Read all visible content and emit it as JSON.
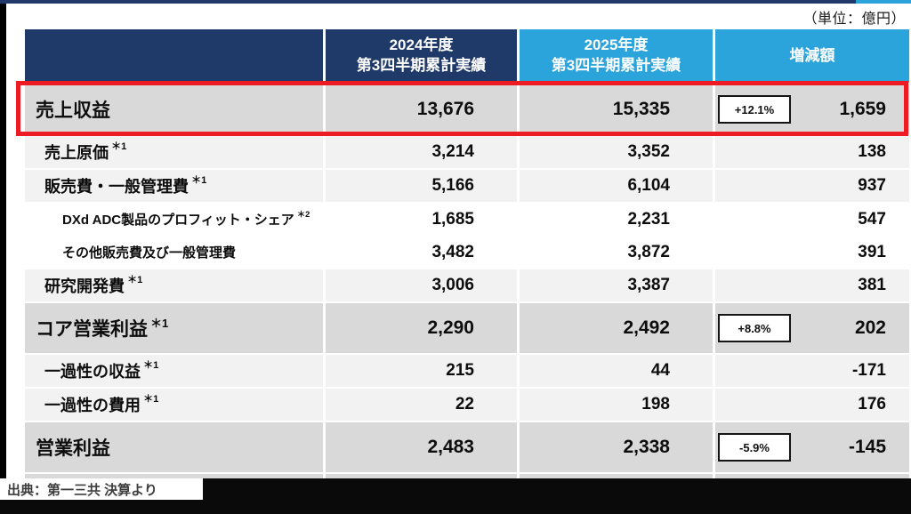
{
  "page": {
    "unit_label": "（単位：億円）",
    "source_label": "出典：第一三共 決算より"
  },
  "colors": {
    "header_navy": "#1f3a68",
    "header_light_blue": "#2ba3db",
    "row_major_gray": "#d9d9d9",
    "row_sub_gray": "#f2f2f2",
    "highlight_red": "#ed1c24",
    "bottom_bar_black": "#0a0a0a"
  },
  "table": {
    "header": {
      "col2024": {
        "line1": "2024年度",
        "line2": "第3四半期累計実績"
      },
      "col2025": {
        "line1": "2025年度",
        "line2": "第3四半期累計実績"
      },
      "colchange": "増減額"
    },
    "rows": [
      {
        "label": "売上収益",
        "note": "",
        "v2024": "13,676",
        "v2025": "15,335",
        "pct": "+12.1%",
        "diff": "1,659"
      },
      {
        "label": "売上原価",
        "note": "＊1",
        "v2024": "3,214",
        "v2025": "3,352",
        "diff": "138"
      },
      {
        "label": "販売費・一般管理費",
        "note": "＊1",
        "v2024": "5,166",
        "v2025": "6,104",
        "diff": "937"
      },
      {
        "label": "DXd ADC製品のプロフィット・シェア",
        "note": "＊2",
        "v2024": "1,685",
        "v2025": "2,231",
        "diff": "547"
      },
      {
        "label": "その他販売費及び一般管理費",
        "note": "",
        "v2024": "3,482",
        "v2025": "3,872",
        "diff": "391"
      },
      {
        "label": "研究開発費",
        "note": "＊1",
        "v2024": "3,006",
        "v2025": "3,387",
        "diff": "381"
      },
      {
        "label": "コア営業利益",
        "note": "＊1",
        "v2024": "2,290",
        "v2025": "2,492",
        "pct": "+8.8%",
        "diff": "202"
      },
      {
        "label": "一過性の収益",
        "note": "＊1",
        "v2024": "215",
        "v2025": "44",
        "diff": "-171"
      },
      {
        "label": "一過性の費用",
        "note": "＊1",
        "v2024": "22",
        "v2025": "198",
        "diff": "176"
      },
      {
        "label": "営業利益",
        "note": "",
        "v2024": "2,483",
        "v2025": "2,338",
        "pct": "-5.9%",
        "diff": "-145"
      }
    ]
  }
}
